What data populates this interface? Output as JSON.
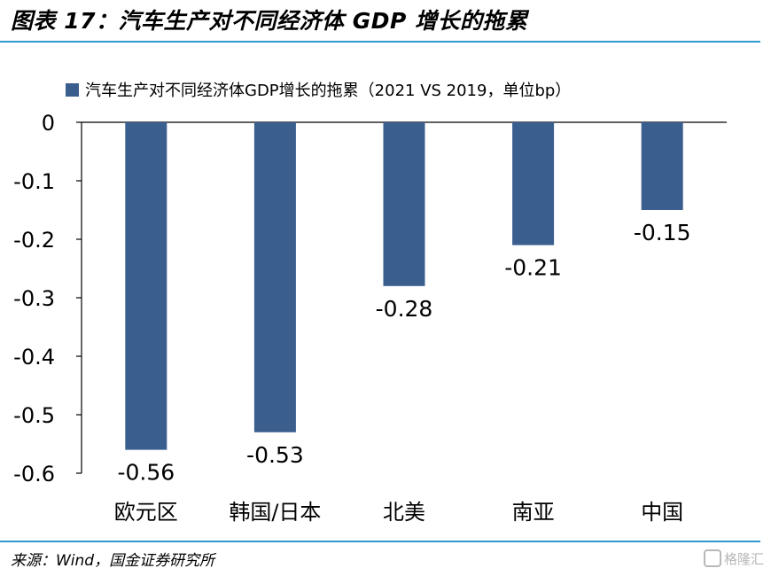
{
  "figure": {
    "title": "图表 17：汽车生产对不同经济体 GDP 增长的拖累",
    "source": "来源：Wind，国金证券研究所",
    "watermark": "格隆汇"
  },
  "chart_data": {
    "type": "bar",
    "categories": [
      "欧元区",
      "韩国/日本",
      "北美",
      "南亚",
      "中国"
    ],
    "series": [
      {
        "name": "汽车生产对不同经济体GDP增长的拖累（2021 VS 2019，单位bp）",
        "values": [
          -0.56,
          -0.53,
          -0.28,
          -0.21,
          -0.15
        ],
        "labels": [
          "-0.56",
          "-0.53",
          "-0.28",
          "-0.21",
          "-0.15"
        ],
        "color": "#3a5f8f"
      }
    ],
    "ylim": [
      -0.6,
      0
    ],
    "yticks": [
      0,
      -0.1,
      -0.2,
      -0.3,
      -0.4,
      -0.5,
      -0.6
    ],
    "ytick_labels": [
      "0",
      "-0.1",
      "-0.2",
      "-0.3",
      "-0.4",
      "-0.5",
      "-0.6"
    ],
    "legend_position": "top-left",
    "grid": false
  }
}
